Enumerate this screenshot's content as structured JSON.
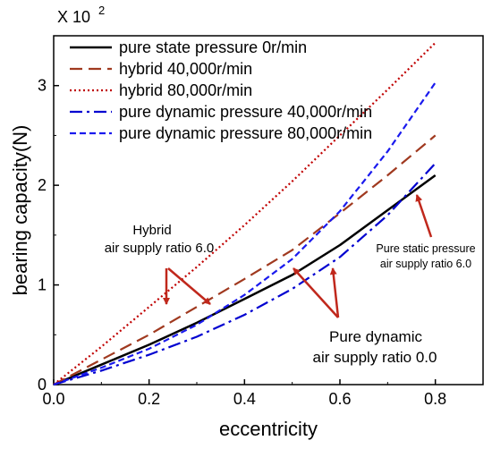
{
  "chart_data": {
    "type": "line",
    "xlabel": "eccentricity",
    "ylabel": "bearing capacity(N)",
    "y_multiplier_label": "X 10",
    "y_multiplier_exponent": "2",
    "xlim": [
      0.0,
      0.9
    ],
    "ylim": [
      0,
      3.5
    ],
    "x_ticks": [
      "0.0",
      "0.2",
      "0.4",
      "0.6",
      "0.8"
    ],
    "y_ticks": [
      "0",
      "1",
      "2",
      "3"
    ],
    "legend_position": "top-left",
    "x": [
      0.0,
      0.1,
      0.2,
      0.3,
      0.4,
      0.5,
      0.6,
      0.7,
      0.8
    ],
    "series": [
      {
        "name": "pure state pressure 0r/min",
        "color": "#000000",
        "style": "solid",
        "values": [
          0.0,
          0.2,
          0.4,
          0.62,
          0.86,
          1.1,
          1.4,
          1.75,
          2.1
        ]
      },
      {
        "name": "hybrid 40,000r/min",
        "color": "#a0391f",
        "style": "dashed",
        "values": [
          0.0,
          0.25,
          0.5,
          0.78,
          1.06,
          1.35,
          1.72,
          2.1,
          2.5
        ]
      },
      {
        "name": "hybrid 80,000r/min",
        "color": "#c00000",
        "style": "dotted",
        "values": [
          0.0,
          0.38,
          0.78,
          1.18,
          1.6,
          2.04,
          2.5,
          2.96,
          3.43
        ]
      },
      {
        "name": "pure dynamic pressure 40,000r/min",
        "color": "#0000d0",
        "style": "dashdot",
        "values": [
          0.0,
          0.14,
          0.3,
          0.48,
          0.7,
          0.96,
          1.28,
          1.7,
          2.22
        ]
      },
      {
        "name": "pure dynamic pressure 80,000r/min",
        "color": "#1a1aee",
        "style": "shortdash",
        "values": [
          0.0,
          0.17,
          0.36,
          0.6,
          0.9,
          1.26,
          1.74,
          2.34,
          3.03
        ]
      }
    ],
    "annotations": [
      {
        "lines": [
          "Hybrid",
          "air supply ratio 6.0"
        ]
      },
      {
        "lines": [
          "Pure dynamic",
          "air supply ratio 0.0"
        ]
      },
      {
        "lines": [
          "Pure static pressure",
          "air supply ratio 6.0"
        ]
      }
    ]
  }
}
